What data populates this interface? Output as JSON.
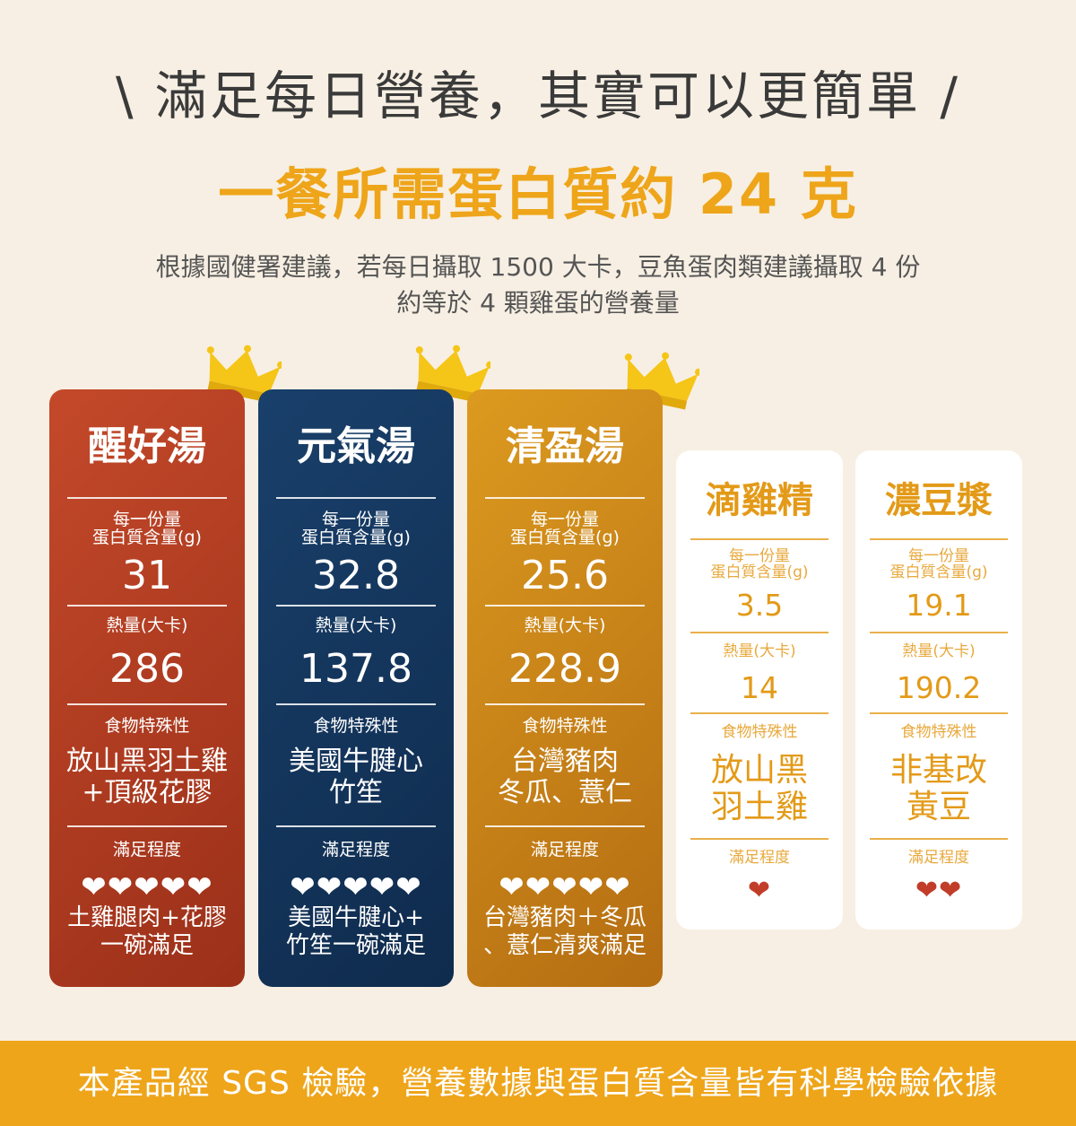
{
  "header": {
    "title": "\\ 滿足每日營養，其實可以更簡單 /",
    "subtitle": "一餐所需蛋白質約 24 克",
    "desc_line1": "根據國健署建議，若每日攝取 1500 大卡，豆魚蛋肉類建議攝取 4 份",
    "desc_line2": "約等於 4 顆雞蛋的營養量"
  },
  "labels": {
    "protein_l1": "每一份量",
    "protein_l2": "蛋白質含量(g)",
    "calories": "熱量(大卡)",
    "feature": "食物特殊性",
    "satisfaction": "滿足程度"
  },
  "products": [
    {
      "name": "醒好湯",
      "protein": "31",
      "calories": "286",
      "feature_l1": "放山黑羽土雞",
      "feature_l2": "+頂級花膠",
      "hearts": "❤❤❤❤❤",
      "note_l1": "土雞腿肉+花膠",
      "note_l2": "一碗滿足",
      "crown": true
    },
    {
      "name": "元氣湯",
      "protein": "32.8",
      "calories": "137.8",
      "feature_l1": "美國牛腱心",
      "feature_l2": "竹笙",
      "hearts": "❤❤❤❤❤",
      "note_l1": "美國牛腱心+",
      "note_l2": "竹笙一碗滿足",
      "crown": true
    },
    {
      "name": "清盈湯",
      "protein": "25.6",
      "calories": "228.9",
      "feature_l1": "台灣豬肉",
      "feature_l2": "冬瓜、薏仁",
      "hearts": "❤❤❤❤❤",
      "note_l1": "台灣豬肉＋冬瓜",
      "note_l2": "、薏仁清爽滿足",
      "crown": true
    },
    {
      "name": "滴雞精",
      "protein": "3.5",
      "calories": "14",
      "feature_l1": "放山黑",
      "feature_l2": "羽土雞",
      "hearts": "❤",
      "crown": false
    },
    {
      "name": "濃豆漿",
      "protein": "19.1",
      "calories": "190.2",
      "feature_l1": "非基改",
      "feature_l2": "黃豆",
      "hearts": "❤❤",
      "crown": false
    }
  ],
  "colors": {
    "accent": "#eea51a",
    "card1": "#b23d22",
    "card2": "#143a62",
    "card3": "#cf8a1a",
    "heart_small": "#c13d2a",
    "background": "#f7efe3"
  },
  "icons": {
    "crown": "crown-icon",
    "heart": "heart-icon"
  },
  "footer": {
    "text": "本產品經 SGS 檢驗，營養數據與蛋白質含量皆有科學檢驗依據"
  }
}
